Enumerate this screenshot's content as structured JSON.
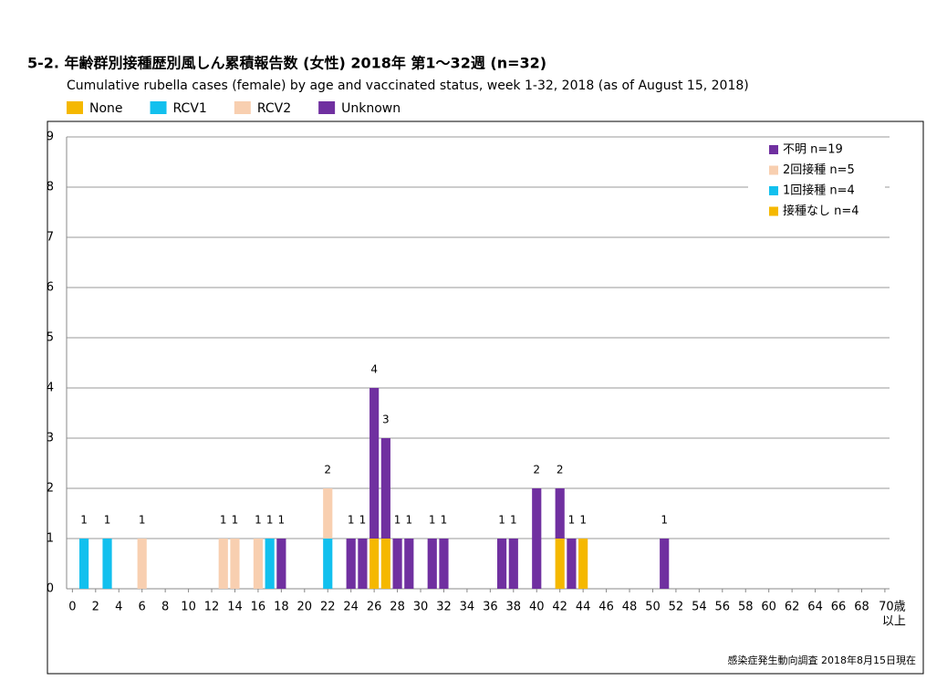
{
  "chart_data": {
    "type": "stacked_bar",
    "title": "5-2. 年齢群別接種歴別風しん累積報告数 (女性)  2018年 第1～32週 (n=32)",
    "subtitle": "Cumulative rubella cases (female) by age and vaccinated status, week 1-32, 2018 (as of August 15, 2018)",
    "x": [
      1,
      3,
      6,
      13,
      14,
      16,
      17,
      18,
      22,
      24,
      25,
      26,
      27,
      28,
      29,
      31,
      32,
      37,
      38,
      40,
      42,
      43,
      44,
      51
    ],
    "series": [
      {
        "name": "None",
        "color": "#f5b800",
        "values": [
          null,
          null,
          null,
          null,
          null,
          null,
          null,
          null,
          null,
          null,
          null,
          1,
          1,
          null,
          null,
          null,
          null,
          null,
          null,
          null,
          1,
          null,
          1,
          null
        ]
      },
      {
        "name": "RCV1",
        "color": "#12c0ee",
        "values": [
          1,
          1,
          null,
          null,
          null,
          null,
          1,
          null,
          1,
          null,
          null,
          null,
          null,
          null,
          null,
          null,
          null,
          null,
          null,
          null,
          null,
          null,
          null,
          null
        ]
      },
      {
        "name": "RCV2",
        "color": "#f8cfb0",
        "values": [
          null,
          null,
          1,
          1,
          1,
          1,
          null,
          null,
          1,
          null,
          null,
          null,
          null,
          null,
          null,
          null,
          null,
          null,
          null,
          null,
          null,
          null,
          null,
          null
        ]
      },
      {
        "name": "Unknown",
        "color": "#7030a0",
        "values": [
          null,
          null,
          null,
          null,
          null,
          null,
          null,
          1,
          null,
          1,
          1,
          3,
          2,
          1,
          1,
          1,
          1,
          1,
          1,
          2,
          1,
          1,
          null,
          1
        ]
      }
    ],
    "totals": [
      1,
      1,
      1,
      1,
      1,
      1,
      1,
      1,
      2,
      1,
      1,
      4,
      3,
      1,
      1,
      1,
      1,
      1,
      1,
      2,
      2,
      1,
      1,
      1
    ],
    "inner_legend": [
      "不明 n=19",
      "2回接種 n=5",
      "1回接種 n=4",
      "接種なし n=4"
    ],
    "xlim": [
      -0.5,
      70.4
    ],
    "xticks": [
      0,
      2,
      4,
      6,
      8,
      10,
      12,
      14,
      16,
      18,
      20,
      22,
      24,
      26,
      28,
      30,
      32,
      34,
      36,
      38,
      40,
      42,
      44,
      46,
      48,
      50,
      52,
      54,
      56,
      58,
      60,
      62,
      64,
      66,
      68,
      {
        "value": 70,
        "label": "70歳"
      }
    ],
    "x_last_tick_note": "以上",
    "ylim": [
      0,
      9
    ],
    "yticks": [
      0,
      1,
      2,
      3,
      4,
      5,
      6,
      7,
      8,
      9
    ],
    "grid": true,
    "footer": "感染症発生動向調査 2018年8月15日現在"
  }
}
